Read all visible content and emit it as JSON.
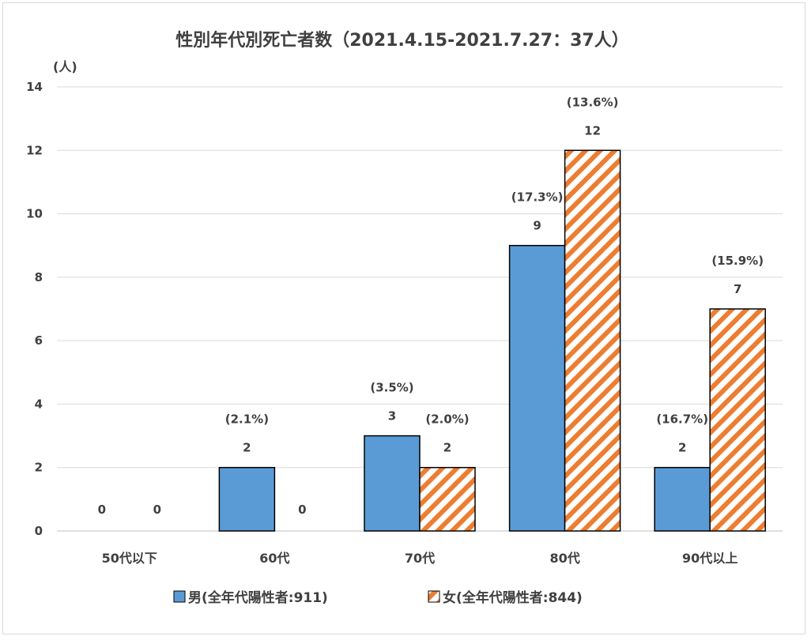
{
  "chart_data": {
    "type": "bar",
    "title": "性別年代別死亡者数（2021.4.15-2021.7.27：37人）",
    "ylabel": "(人)",
    "xlabel": "",
    "ylim": [
      0,
      14
    ],
    "yticks": [
      0,
      2,
      4,
      6,
      8,
      10,
      12,
      14
    ],
    "categories": [
      "50代以下",
      "60代",
      "70代",
      "80代",
      "90代以上"
    ],
    "grid": true,
    "legend_position": "bottom",
    "series": [
      {
        "name": "男(全年代陽性者:911)",
        "values": [
          0,
          2,
          3,
          9,
          2
        ],
        "labels": [
          "0",
          "2",
          "3",
          "9",
          "2"
        ],
        "pct_labels": [
          "",
          "(2.1%)",
          "(3.5%)",
          "(17.3%)",
          "(16.7%)"
        ],
        "color": "#5b9bd5",
        "pattern": "solid"
      },
      {
        "name": "女(全年代陽性者:844)",
        "values": [
          0,
          0,
          2,
          12,
          7
        ],
        "labels": [
          "0",
          "0",
          "2",
          "12",
          "7"
        ],
        "pct_labels": [
          "",
          "",
          "(2.0%)",
          "(13.6%)",
          "(15.9%)"
        ],
        "color": "#ed7d31",
        "pattern": "diagonal-stripes"
      }
    ]
  }
}
